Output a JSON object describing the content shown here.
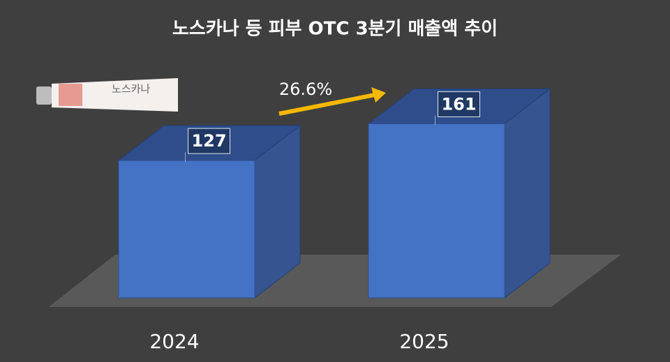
{
  "chart_data": {
    "type": "bar",
    "title": "노스카나 등 피부 OTC 3분기 매출액 추이",
    "categories": [
      "2024",
      "2025"
    ],
    "values": [
      127,
      161
    ],
    "color": "#4472c4",
    "annotation": "26.6%",
    "product_label": "노스카나"
  }
}
